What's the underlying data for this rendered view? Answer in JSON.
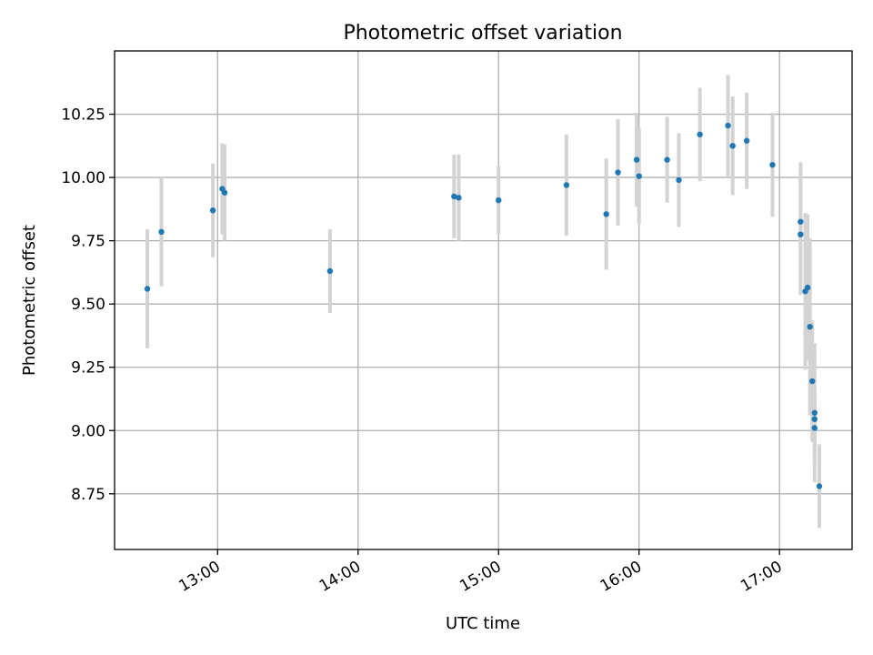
{
  "chart_data": {
    "type": "scatter",
    "title": "Photometric offset variation",
    "xlabel": "UTC time",
    "ylabel": "Photometric offset",
    "x_axis_type": "time",
    "xlim": [
      "12:16",
      "17:31"
    ],
    "ylim": [
      8.53,
      10.5
    ],
    "grid": true,
    "legend": "none",
    "x_ticks": [
      "13:00",
      "14:00",
      "15:00",
      "16:00",
      "17:00"
    ],
    "y_ticks": [
      8.75,
      9.0,
      9.25,
      9.5,
      9.75,
      10.0,
      10.25
    ],
    "y_tick_labels": [
      "8.75",
      "9.00",
      "9.25",
      "9.50",
      "9.75",
      "10.00",
      "10.25"
    ],
    "colors": {
      "points": "#1f77b4",
      "errorbars": "#d3d3d3",
      "grid": "#b0b0b0"
    },
    "points": [
      {
        "x": "12:30",
        "y": 9.56,
        "yerr": 0.235
      },
      {
        "x": "12:36",
        "y": 9.785,
        "yerr": 0.215
      },
      {
        "x": "12:58",
        "y": 9.87,
        "yerr": 0.185
      },
      {
        "x": "13:02",
        "y": 9.955,
        "yerr": 0.18
      },
      {
        "x": "13:03",
        "y": 9.94,
        "yerr": 0.19
      },
      {
        "x": "13:48",
        "y": 9.63,
        "yerr": 0.165
      },
      {
        "x": "14:41",
        "y": 9.925,
        "yerr": 0.165
      },
      {
        "x": "14:43",
        "y": 9.92,
        "yerr": 0.17
      },
      {
        "x": "15:00",
        "y": 9.91,
        "yerr": 0.135
      },
      {
        "x": "15:29",
        "y": 9.97,
        "yerr": 0.2
      },
      {
        "x": "15:46",
        "y": 9.855,
        "yerr": 0.22
      },
      {
        "x": "15:51",
        "y": 10.02,
        "yerr": 0.21
      },
      {
        "x": "15:59",
        "y": 10.07,
        "yerr": 0.185
      },
      {
        "x": "16:00",
        "y": 10.005,
        "yerr": 0.19
      },
      {
        "x": "16:12",
        "y": 10.07,
        "yerr": 0.17
      },
      {
        "x": "16:17",
        "y": 9.99,
        "yerr": 0.185
      },
      {
        "x": "16:26",
        "y": 10.17,
        "yerr": 0.185
      },
      {
        "x": "16:38",
        "y": 10.205,
        "yerr": 0.2
      },
      {
        "x": "16:40",
        "y": 10.125,
        "yerr": 0.195
      },
      {
        "x": "16:46",
        "y": 10.145,
        "yerr": 0.19
      },
      {
        "x": "16:57",
        "y": 10.05,
        "yerr": 0.205
      },
      {
        "x": "17:09",
        "y": 9.825,
        "yerr": 0.235
      },
      {
        "x": "17:09",
        "y": 9.775,
        "yerr": 0.24
      },
      {
        "x": "17:11",
        "y": 9.55,
        "yerr": 0.31
      },
      {
        "x": "17:12",
        "y": 9.565,
        "yerr": 0.29
      },
      {
        "x": "17:13",
        "y": 9.41,
        "yerr": 0.35
      },
      {
        "x": "17:14",
        "y": 9.195,
        "yerr": 0.24
      },
      {
        "x": "17:15",
        "y": 9.045,
        "yerr": 0.09
      },
      {
        "x": "17:15",
        "y": 9.01,
        "yerr": 0.14
      },
      {
        "x": "17:15",
        "y": 9.07,
        "yerr": 0.275
      },
      {
        "x": "17:17",
        "y": 8.78,
        "yerr": 0.165
      }
    ]
  }
}
